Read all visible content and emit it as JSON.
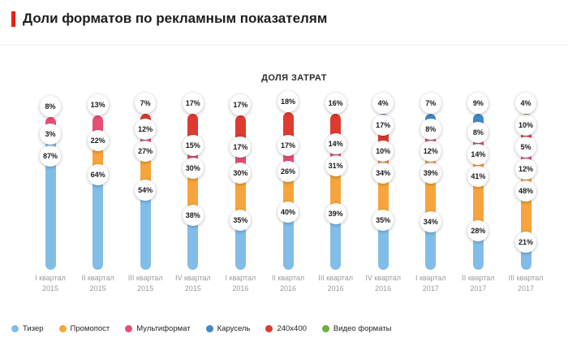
{
  "header": {
    "title": "Доли форматов по рекламным показателям",
    "accent_color": "#e2231a"
  },
  "chart_data": {
    "type": "bar",
    "stacked": true,
    "title": "ДОЛЯ ЗАТРАТ",
    "unit": "%",
    "ylim": [
      0,
      100
    ],
    "grid": false,
    "legend_position": "bottom",
    "formats": [
      {
        "name": "Тизер",
        "color": "#82bde8"
      },
      {
        "name": "Промопост",
        "color": "#f6a53c"
      },
      {
        "name": "Мультиформат",
        "color": "#e84e73"
      },
      {
        "name": "Карусель",
        "color": "#4189c7"
      },
      {
        "name": "240x400",
        "color": "#dd3b2f"
      },
      {
        "name": "Видео форматы",
        "color": "#6bae44"
      }
    ],
    "bars": [
      {
        "quarter": "I квартал",
        "year": "2015",
        "segments": [
          {
            "format": "Тизер",
            "value": 87
          },
          {
            "format": "Промопост",
            "value": 3
          },
          {
            "format": "Мультиформат",
            "value": 8
          }
        ]
      },
      {
        "quarter": "II квартал",
        "year": "2015",
        "segments": [
          {
            "format": "Тизер",
            "value": 64
          },
          {
            "format": "Промопост",
            "value": 22
          },
          {
            "format": "Мультиформат",
            "value": 13
          }
        ]
      },
      {
        "quarter": "III квартал",
        "year": "2015",
        "segments": [
          {
            "format": "Тизер",
            "value": 54
          },
          {
            "format": "Промопост",
            "value": 27
          },
          {
            "format": "Мультиформат",
            "value": 12
          },
          {
            "format": "240x400",
            "value": 7
          }
        ]
      },
      {
        "quarter": "IV квартал",
        "year": "2015",
        "segments": [
          {
            "format": "Тизер",
            "value": 38
          },
          {
            "format": "Промопост",
            "value": 30
          },
          {
            "format": "Мультиформат",
            "value": 15
          },
          {
            "format": "240x400",
            "value": 17
          }
        ]
      },
      {
        "quarter": "I квартал",
        "year": "2016",
        "segments": [
          {
            "format": "Тизер",
            "value": 35
          },
          {
            "format": "Промопост",
            "value": 30
          },
          {
            "format": "Мультиформат",
            "value": 17
          },
          {
            "format": "240x400",
            "value": 17
          }
        ]
      },
      {
        "quarter": "II квартал",
        "year": "2016",
        "segments": [
          {
            "format": "Тизер",
            "value": 40
          },
          {
            "format": "Промопост",
            "value": 26
          },
          {
            "format": "Мультиформат",
            "value": 17
          },
          {
            "format": "240x400",
            "value": 18
          }
        ]
      },
      {
        "quarter": "III квартал",
        "year": "2016",
        "segments": [
          {
            "format": "Тизер",
            "value": 39
          },
          {
            "format": "Промопост",
            "value": 31
          },
          {
            "format": "Мультиформат",
            "value": 14
          },
          {
            "format": "240x400",
            "value": 16
          }
        ]
      },
      {
        "quarter": "IV квартал",
        "year": "2016",
        "segments": [
          {
            "format": "Тизер",
            "value": 35
          },
          {
            "format": "Промопост",
            "value": 34
          },
          {
            "format": "Мультиформат",
            "value": 10
          },
          {
            "format": "240x400",
            "value": 17
          },
          {
            "format": "Карусель",
            "value": 4
          }
        ]
      },
      {
        "quarter": "I квартал",
        "year": "2017",
        "segments": [
          {
            "format": "Тизер",
            "value": 34
          },
          {
            "format": "Промопост",
            "value": 39
          },
          {
            "format": "Мультиформат",
            "value": 12
          },
          {
            "format": "240x400",
            "value": 8
          },
          {
            "format": "Карусель",
            "value": 7
          }
        ]
      },
      {
        "quarter": "II квартал",
        "year": "2017",
        "segments": [
          {
            "format": "Тизер",
            "value": 28
          },
          {
            "format": "Промопост",
            "value": 41
          },
          {
            "format": "Мультиформат",
            "value": 14
          },
          {
            "format": "240x400",
            "value": 8
          },
          {
            "format": "Карусель",
            "value": 9
          }
        ]
      },
      {
        "quarter": "III квартал",
        "year": "2017",
        "segments": [
          {
            "format": "Тизер",
            "value": 21
          },
          {
            "format": "Промопост",
            "value": 48
          },
          {
            "format": "Мультиформат",
            "value": 12
          },
          {
            "format": "240x400",
            "value": 5
          },
          {
            "format": "Карусель",
            "value": 10
          },
          {
            "format": "Видео форматы",
            "value": 4
          }
        ]
      }
    ]
  }
}
